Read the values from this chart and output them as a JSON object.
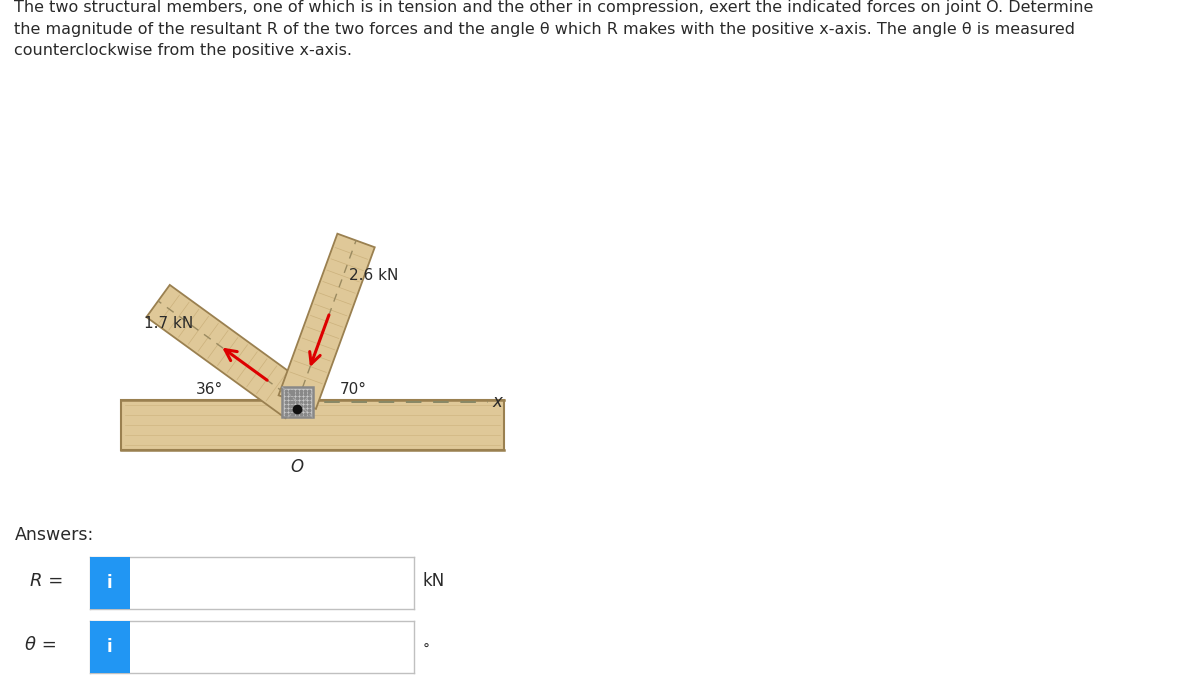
{
  "title_text": "The two structural members, one of which is in tension and the other in compression, exert the indicated forces on joint O. Determine\nthe magnitude of the resultant R of the two forces and the angle θ which R makes with the positive x-axis. The angle θ is measured\ncounterclockwise from the positive x-axis.",
  "force1_label": "1.7 kN",
  "force2_label": "2.6 kN",
  "angle1_label": "36°",
  "angle2_label": "70°",
  "x_label": "x",
  "O_label": "O",
  "answers_label": "Answers:",
  "R_label": "R =",
  "theta_label": "θ =",
  "kN_label": "kN",
  "deg_label": "°",
  "i_label": "i",
  "bg_color": "#ffffff",
  "wood_color_light": "#dfc898",
  "wood_color": "#c8ad78",
  "wood_edge": "#9a8050",
  "wood_grain": "#b89a60",
  "joint_bg": "#c8c8c8",
  "joint_border": "#888888",
  "joint_dot": "#888888",
  "arrow_color": "#dd0000",
  "dash_color": "#9a8a60",
  "text_color": "#2a2a2a",
  "input_border": "#c0c0c0",
  "input_bg": "#ffffff",
  "btn_color": "#2196f3",
  "btn_text": "#ffffff"
}
